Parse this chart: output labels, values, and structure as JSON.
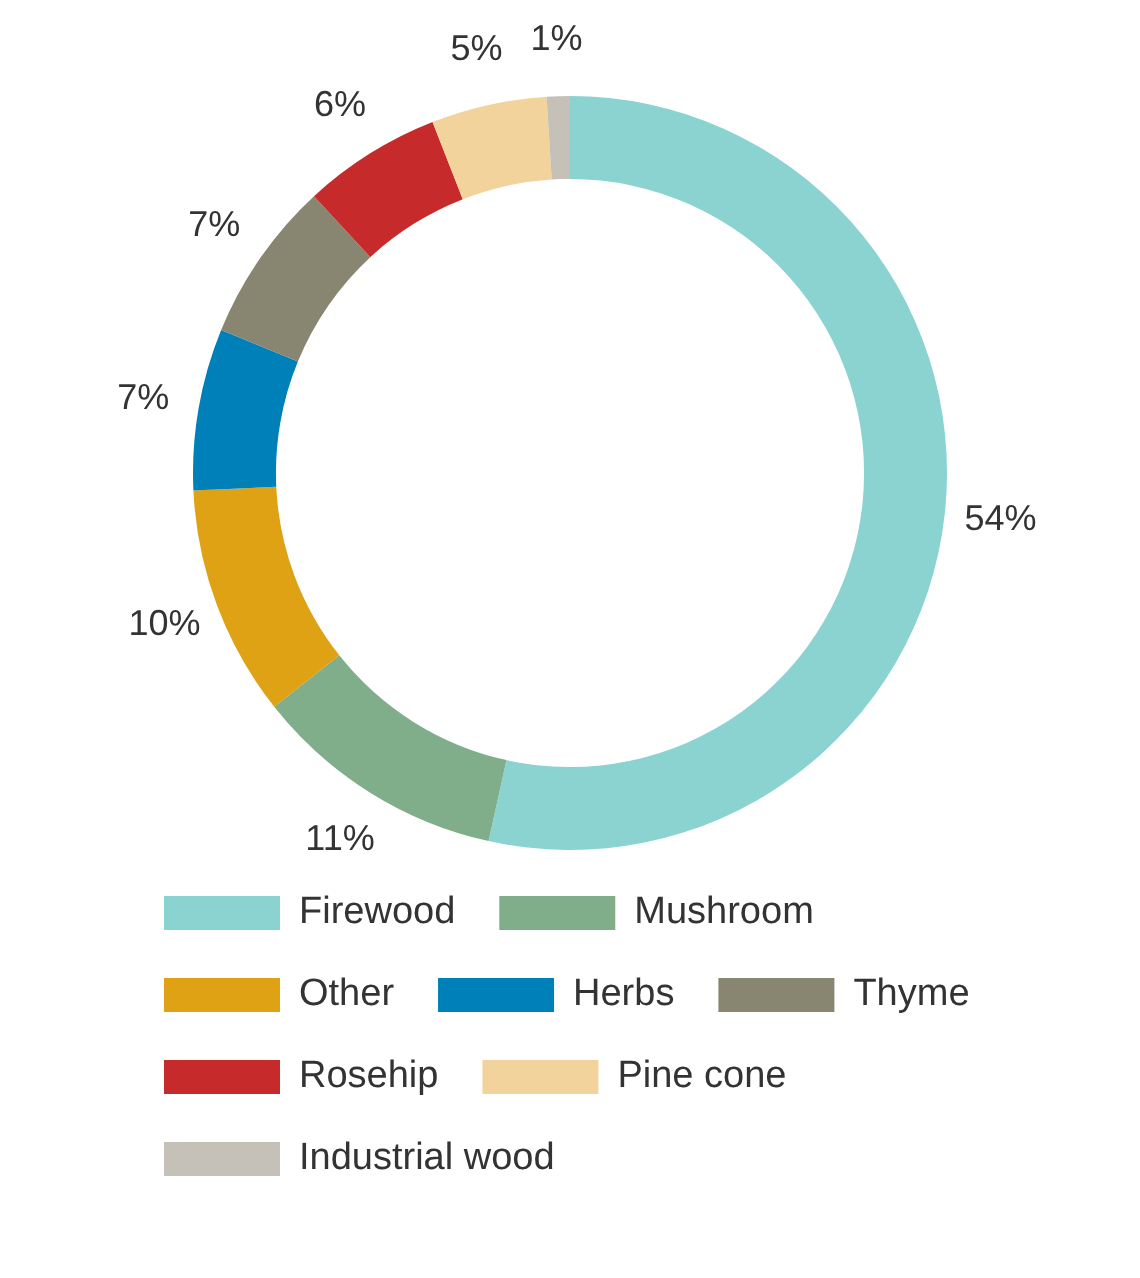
{
  "chart_data": {
    "type": "donut",
    "categories": [
      "Firewood",
      "Mushroom",
      "Other",
      "Herbs",
      "Thyme",
      "Rosehip",
      "Pine cone",
      "Industrial wood"
    ],
    "values": [
      54,
      11,
      10,
      7,
      7,
      6,
      5,
      1
    ],
    "value_labels": [
      "54%",
      "11%",
      "10%",
      "7%",
      "7%",
      "6%",
      "5%",
      "1%"
    ],
    "colors": [
      "#8ad3d1",
      "#80ad8a",
      "#dea214",
      "#0080b8",
      "#888670",
      "#c62a2a",
      "#f2d39c",
      "#c5c1b8"
    ],
    "legend": "bottom"
  }
}
